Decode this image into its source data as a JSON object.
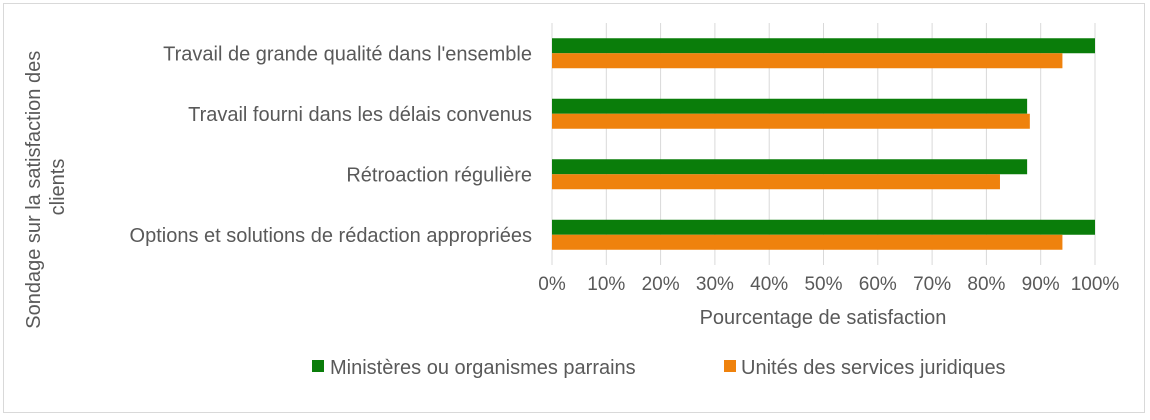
{
  "chart_data": {
    "type": "bar",
    "orientation": "horizontal",
    "categories": [
      "Travail de grande qualité dans l'ensemble",
      "Travail fourni dans les délais convenus",
      "Rétroaction régulière",
      "Options et solutions de rédaction appropriées"
    ],
    "series": [
      {
        "name": "Ministères ou organismes parrains",
        "color": "#0a7d0a",
        "values": [
          1.0,
          0.875,
          0.875,
          1.0
        ]
      },
      {
        "name": "Unités des services juridiques",
        "color": "#ef820d",
        "values": [
          0.94,
          0.88,
          0.825,
          0.94
        ]
      }
    ],
    "xticks": [
      "0%",
      "10%",
      "20%",
      "30%",
      "40%",
      "50%",
      "60%",
      "70%",
      "80%",
      "90%",
      "100%"
    ],
    "xlim": [
      0,
      1
    ],
    "xlabel": "Pourcentage de satisfaction",
    "ylabel": "Sondage sur la satisfaction des clients",
    "grid": true,
    "legend_position": "bottom"
  }
}
